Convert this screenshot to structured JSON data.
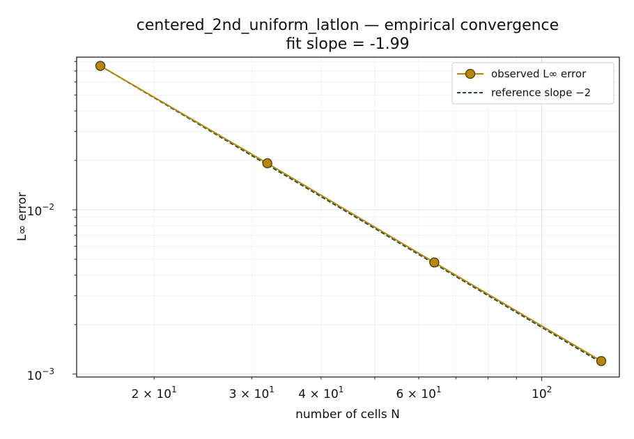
{
  "chart_data": {
    "type": "line",
    "title": "centered_2nd_uniform_latlon — empirical convergence",
    "subtitle": "fit slope = -1.99",
    "xlabel": "number of cells N",
    "ylabel": "L∞ error",
    "xscale": "log",
    "yscale": "log",
    "xlim": [
      14.5,
      138
    ],
    "ylim": [
      0.00096,
      0.085
    ],
    "grid": true,
    "legend_position": "top-right",
    "x_tick_labels": [
      {
        "value": 20,
        "base": "2 × 10",
        "exp": "1"
      },
      {
        "value": 30,
        "base": "3 × 10",
        "exp": "1"
      },
      {
        "value": 40,
        "base": "4 × 10",
        "exp": "1"
      },
      {
        "value": 60,
        "base": "6 × 10",
        "exp": "1"
      },
      {
        "value": 100,
        "base": "10",
        "exp": "2"
      }
    ],
    "y_tick_labels": [
      {
        "value": 0.01,
        "base": "10",
        "exp": "−2"
      },
      {
        "value": 0.001,
        "base": "10",
        "exp": "−3"
      }
    ],
    "series": [
      {
        "name": "observed L∞ error",
        "color": "#b8860b",
        "marker": "circle",
        "x": [
          16,
          32,
          64,
          128
        ],
        "y": [
          0.0752,
          0.0192,
          0.00478,
          0.0012
        ]
      },
      {
        "name": "reference slope −2",
        "color": "#1f4e3d",
        "style": "dashed",
        "x": [
          16,
          128
        ],
        "y": [
          0.0752,
          0.001175
        ]
      }
    ]
  }
}
